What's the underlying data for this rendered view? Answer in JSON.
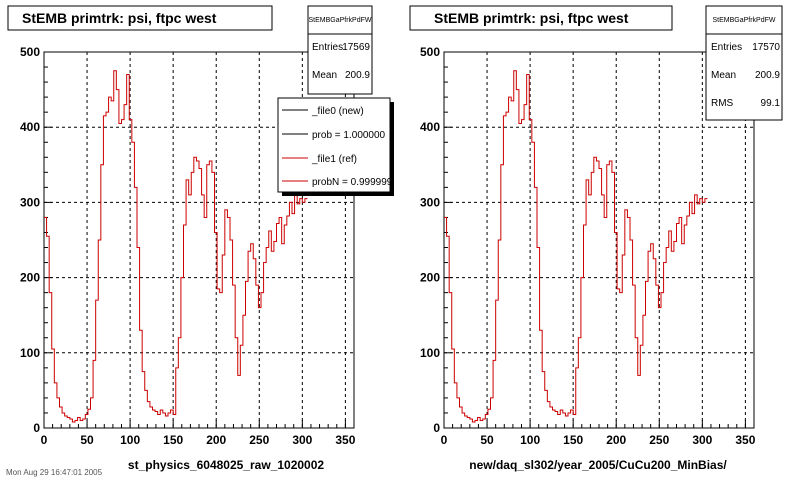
{
  "colors": {
    "histogram": "#cc0000",
    "legend_new": "#000000",
    "legend_ref": "#cc0000",
    "frame": "#000000",
    "grid": "#000000"
  },
  "footer_text": "Mon Aug 29 16:47:01 2005",
  "chart_data": [
    {
      "type": "line",
      "title": "StEMB primtrk: psi, ftpc west",
      "xlabel": "st_physics_6048025_raw_1020002",
      "ylabel": "",
      "xlim": [
        0,
        360
      ],
      "ylim": [
        0,
        500
      ],
      "xticks": [
        "0",
        "50",
        "100",
        "150",
        "200",
        "250",
        "300",
        "350"
      ],
      "yticks": [
        "0",
        "100",
        "200",
        "300",
        "400",
        "500"
      ],
      "grid": true,
      "stats": {
        "name": "StEMBGaPfrkPdFW",
        "rows": [
          {
            "label": "Entries",
            "value": "17569"
          },
          {
            "label": "Mean",
            "value": "200.9"
          }
        ]
      },
      "legend": {
        "placement": "top-right",
        "entries": [
          {
            "label": "_file0 (new)",
            "color": "#000000"
          },
          {
            "label": "prob = 1.000000",
            "color": "#000000"
          },
          {
            "label": "_file1 (ref)",
            "color": "#cc0000"
          },
          {
            "label": "probN = 0.999999",
            "color": "#cc0000"
          }
        ]
      },
      "series": [
        {
          "bin_width": 3,
          "x_start": 0,
          "values": [
            280,
            255,
            180,
            105,
            60,
            40,
            28,
            20,
            16,
            14,
            12,
            8,
            10,
            14,
            10,
            12,
            18,
            25,
            40,
            90,
            170,
            250,
            350,
            415,
            420,
            440,
            435,
            475,
            450,
            405,
            410,
            430,
            470,
            410,
            380,
            320,
            240,
            130,
            75,
            50,
            35,
            28,
            24,
            22,
            18,
            24,
            20,
            16,
            20,
            24,
            18,
            80,
            120,
            200,
            270,
            330,
            310,
            340,
            360,
            355,
            345,
            310,
            280,
            350,
            355,
            340,
            260,
            185,
            180,
            230,
            290,
            280,
            250,
            190,
            120,
            70,
            110,
            150,
            195,
            235,
            245,
            225,
            190,
            160,
            180,
            220,
            240,
            262,
            235,
            248,
            272,
            280,
            245,
            270,
            282,
            300,
            285,
            310,
            298,
            305,
            300,
            305
          ]
        }
      ]
    },
    {
      "type": "line",
      "title": "StEMB primtrk: psi, ftpc west",
      "xlabel": "new/daq_sl302/year_2005/CuCu200_MinBias/",
      "ylabel": "",
      "xlim": [
        0,
        360
      ],
      "ylim": [
        0,
        500
      ],
      "xticks": [
        "0",
        "50",
        "100",
        "150",
        "200",
        "250",
        "300",
        "350"
      ],
      "yticks": [
        "0",
        "100",
        "200",
        "300",
        "400",
        "500"
      ],
      "grid": true,
      "stats": {
        "name": "StEMBGaPfrkPdFW",
        "rows": [
          {
            "label": "Entries",
            "value": "17570"
          },
          {
            "label": "Mean",
            "value": "200.9"
          },
          {
            "label": "RMS",
            "value": "99.1"
          }
        ]
      },
      "series": [
        {
          "bin_width": 3,
          "x_start": 0,
          "values": [
            280,
            255,
            180,
            105,
            60,
            40,
            28,
            20,
            16,
            14,
            12,
            8,
            10,
            14,
            10,
            12,
            18,
            25,
            40,
            90,
            170,
            250,
            350,
            415,
            420,
            440,
            435,
            475,
            450,
            405,
            410,
            430,
            470,
            410,
            380,
            320,
            240,
            130,
            75,
            50,
            35,
            28,
            24,
            22,
            18,
            24,
            20,
            16,
            20,
            24,
            18,
            80,
            120,
            200,
            270,
            330,
            310,
            340,
            360,
            355,
            345,
            310,
            280,
            350,
            355,
            340,
            260,
            185,
            180,
            230,
            290,
            280,
            250,
            190,
            120,
            70,
            110,
            150,
            195,
            235,
            245,
            225,
            190,
            160,
            180,
            220,
            240,
            262,
            235,
            248,
            272,
            280,
            245,
            270,
            282,
            300,
            285,
            310,
            298,
            305,
            300,
            305
          ]
        }
      ]
    }
  ]
}
